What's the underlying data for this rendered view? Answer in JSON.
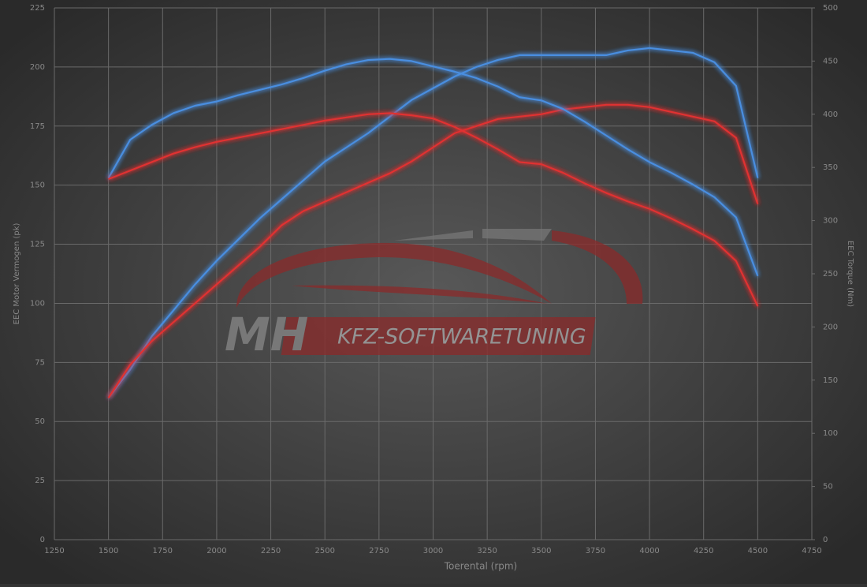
{
  "chart_data": {
    "type": "line",
    "xlabel": "Toerental (rpm)",
    "ylabel": "EEC Motor Vermogen (pk)",
    "y2label": "EEC Torque (Nm)",
    "watermark": [
      "MH",
      "KFZ-SOFTWARETUNING"
    ],
    "x": [
      1500,
      1600,
      1700,
      1800,
      1900,
      2000,
      2100,
      2200,
      2300,
      2400,
      2500,
      2600,
      2700,
      2800,
      2900,
      3000,
      3100,
      3200,
      3300,
      3400,
      3500,
      3600,
      3700,
      3800,
      3900,
      4000,
      4100,
      4200,
      4300,
      4400,
      4500
    ],
    "series": [
      {
        "color": "#4a8ee0",
        "values": [
          60,
          72,
          86,
          97,
          108,
          118,
          127,
          136,
          144,
          152,
          160,
          166,
          172,
          179,
          186,
          191,
          196,
          200,
          203,
          205,
          205,
          205,
          205,
          205,
          207,
          208,
          207,
          206,
          202,
          192,
          153
        ]
      },
      {
        "color": "#e03030",
        "values": [
          60,
          74,
          84,
          92,
          100,
          108,
          116,
          124,
          133,
          139,
          143,
          147,
          151,
          155,
          160,
          166,
          172,
          175,
          178,
          179,
          180,
          182,
          183,
          184,
          184,
          183,
          181,
          179,
          177,
          170,
          142
        ]
      },
      {
        "color": "#4a8ee0",
        "axis": "y2",
        "values": [
          340,
          376,
          390,
          401,
          408,
          412,
          418,
          423,
          428,
          434,
          441,
          447,
          451,
          452,
          450,
          445,
          440,
          434,
          426,
          416,
          413,
          405,
          393,
          380,
          367,
          355,
          345,
          334,
          322,
          303,
          248
        ]
      },
      {
        "color": "#e03030",
        "axis": "y2",
        "values": [
          339,
          347,
          355,
          363,
          369,
          374,
          378,
          382,
          386,
          390,
          394,
          397,
          400,
          401,
          399,
          396,
          388,
          378,
          367,
          355,
          353,
          345,
          335,
          326,
          318,
          311,
          302,
          292,
          281,
          262,
          219.5
        ]
      }
    ],
    "xlim": [
      1250,
      4750
    ],
    "xticks": [
      1250,
      1500,
      1750,
      2000,
      2250,
      2500,
      2750,
      3000,
      3250,
      3500,
      3750,
      4000,
      4250,
      4500,
      4750
    ],
    "ylim": [
      0,
      225
    ],
    "yticks": [
      0,
      25,
      50,
      75,
      100,
      125,
      150,
      175,
      200,
      225
    ],
    "y2lim": [
      0,
      500
    ],
    "y2ticks": [
      0,
      50,
      100,
      150,
      200,
      250,
      300,
      350,
      400,
      450,
      500
    ],
    "grid": true
  }
}
